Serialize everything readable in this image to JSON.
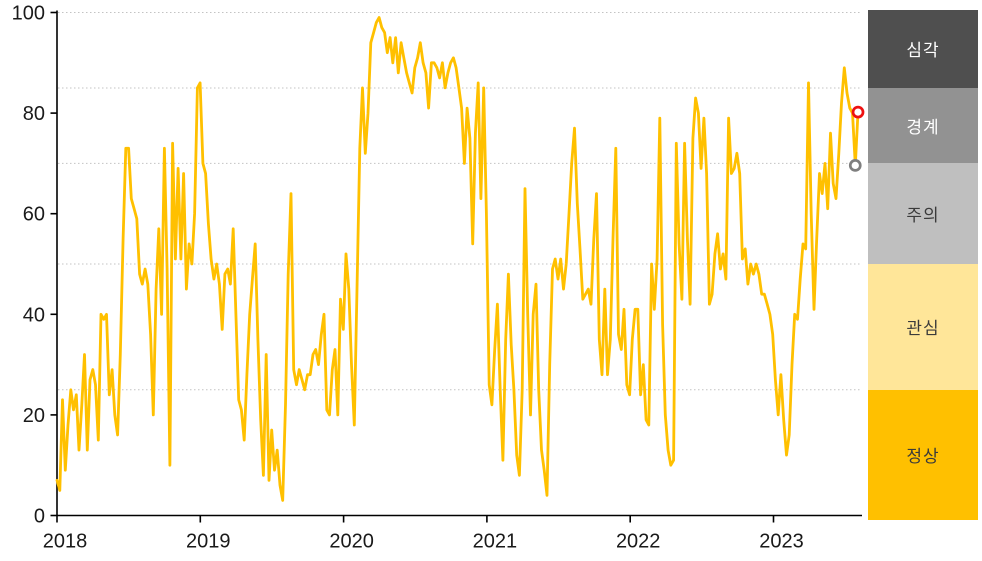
{
  "chart_data": {
    "type": "line",
    "title": "",
    "xlabel": "",
    "ylabel": "",
    "x_tick_labels": [
      "2018",
      "2019",
      "2020",
      "2021",
      "2022",
      "2023"
    ],
    "x_tick_years": [
      2018,
      2019,
      2020,
      2021,
      2022,
      2023
    ],
    "y_tick_labels": [
      "0",
      "20",
      "40",
      "60",
      "80",
      "100"
    ],
    "y_ticks": [
      0,
      20,
      40,
      60,
      80,
      100
    ],
    "ylim": [
      0,
      100
    ],
    "gridline_values": [
      25,
      50,
      70,
      85,
      100
    ],
    "grid_style": "dotted",
    "line_color": "#FFC000",
    "axis_color": "#000000",
    "tick_label_color": "#1a1a1a",
    "t_start": 2018,
    "t_step_years": 0.019209,
    "values": [
      7,
      5,
      23,
      9,
      18,
      25,
      21,
      24,
      13,
      22,
      32,
      13,
      27,
      29,
      26,
      15,
      40,
      39,
      40,
      24,
      29,
      20,
      16,
      32,
      55,
      73,
      73,
      63,
      61,
      59,
      48,
      46,
      49,
      46,
      36,
      20,
      45,
      57,
      40,
      73,
      49,
      10,
      74,
      51,
      69,
      51,
      68,
      45,
      54,
      50,
      60,
      85,
      86,
      70,
      68,
      58,
      51,
      47,
      50,
      46,
      37,
      48,
      49,
      46,
      57,
      40,
      23,
      21,
      15,
      28,
      40,
      47,
      54,
      35,
      19,
      8,
      32,
      7,
      17,
      9,
      13,
      6,
      3,
      22,
      48,
      64,
      29,
      26,
      29,
      27,
      25,
      28,
      28,
      32,
      33,
      30,
      36,
      40,
      21,
      20,
      29,
      33,
      20,
      43,
      37,
      52,
      45,
      30,
      18,
      45,
      73,
      85,
      72,
      80,
      94,
      96,
      98,
      99,
      97,
      96,
      92,
      95,
      90,
      95,
      88,
      94,
      91,
      88,
      86,
      84,
      89,
      91,
      94,
      90,
      88,
      81,
      90,
      90,
      89,
      87,
      90,
      85,
      88,
      90,
      91,
      89,
      85,
      81,
      70,
      81,
      75,
      54,
      76,
      86,
      63,
      85,
      60,
      26,
      22,
      33,
      42,
      25,
      11,
      35,
      48,
      34,
      25,
      12,
      8,
      25,
      65,
      40,
      20,
      40,
      46,
      25,
      13,
      9,
      4,
      30,
      49,
      51,
      47,
      51,
      45,
      50,
      60,
      70,
      77,
      62,
      53,
      43,
      44,
      45,
      42,
      55,
      64,
      35,
      28,
      45,
      28,
      35,
      55,
      73,
      36,
      33,
      41,
      26,
      24,
      35,
      41,
      41,
      24,
      30,
      19,
      18,
      50,
      41,
      51,
      79,
      38,
      20,
      13,
      10,
      11,
      74,
      54,
      43,
      74,
      55,
      42,
      75,
      83,
      80,
      69,
      79,
      68,
      42,
      44,
      52,
      56,
      49,
      52,
      47,
      79,
      68,
      69,
      72,
      68,
      51,
      53,
      46,
      50,
      48,
      50,
      48,
      44,
      44,
      42,
      40,
      36,
      27,
      20,
      28,
      19,
      12,
      16,
      30,
      40,
      39,
      47,
      54,
      53,
      86,
      60,
      41,
      55,
      68,
      64,
      70,
      61,
      76,
      66,
      63,
      72,
      82,
      89,
      84,
      81,
      80,
      69.6,
      80.2
    ],
    "markers": [
      {
        "name": "previous-value-marker",
        "index": 290,
        "value": 69.6,
        "ring_color": "#7F7F7F",
        "fill": "#FFFFFF"
      },
      {
        "name": "latest-value-marker",
        "index": 291,
        "value": 80.2,
        "ring_color": "#EE1111",
        "fill": "#FFFFFF"
      }
    ],
    "legend_position": "right",
    "legend_bands": [
      {
        "label": "심각",
        "range": [
          85,
          100
        ],
        "color": "#4F4F4F",
        "text_color": "#FFFFFF"
      },
      {
        "label": "경계",
        "range": [
          70,
          85
        ],
        "color": "#929292",
        "text_color": "#FFFFFF"
      },
      {
        "label": "주의",
        "range": [
          50,
          70
        ],
        "color": "#BFBFBF",
        "text_color": "#3B3B3B"
      },
      {
        "label": "관심",
        "range": [
          25,
          50
        ],
        "color": "#FFE699",
        "text_color": "#3B3B3B"
      },
      {
        "label": "정상",
        "range": [
          0,
          25
        ],
        "color": "#FFC000",
        "text_color": "#3B3B3B"
      }
    ]
  }
}
